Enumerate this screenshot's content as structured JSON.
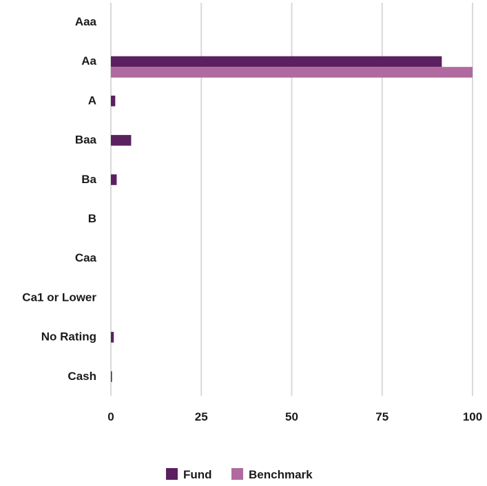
{
  "colors": {
    "fund": "#5b2060",
    "benchmark": "#b06aa0"
  },
  "legend": {
    "fund_label": "Fund",
    "benchmark_label": "Benchmark"
  },
  "chart_data": {
    "type": "bar",
    "orientation": "horizontal",
    "categories": [
      "Aaa",
      "Aa",
      "A",
      "Baa",
      "Ba",
      "B",
      "Caa",
      "Ca1 or Lower",
      "No Rating",
      "Cash"
    ],
    "series": [
      {
        "name": "Fund",
        "values": [
          0,
          91.5,
          1.2,
          5.6,
          1.6,
          0,
          0,
          0,
          0.8,
          0.3
        ]
      },
      {
        "name": "Benchmark",
        "values": [
          0,
          100,
          0,
          0,
          0,
          0,
          0,
          0,
          0,
          0
        ]
      }
    ],
    "xlim": [
      0,
      100
    ],
    "xticks": [
      "0",
      "25",
      "50",
      "75",
      "100"
    ],
    "grid": true,
    "legend_position": "bottom"
  }
}
